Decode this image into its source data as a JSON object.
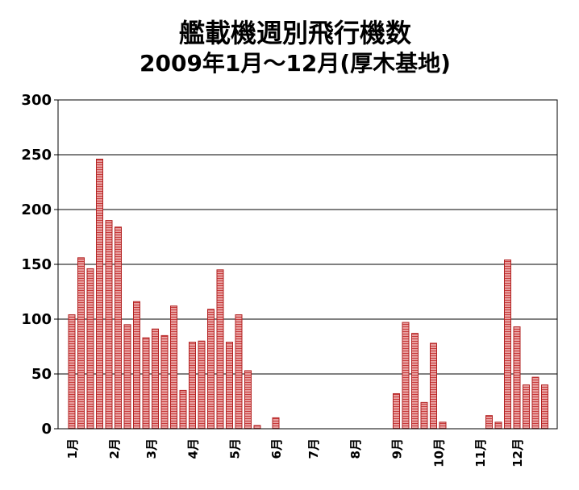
{
  "chart_data": {
    "type": "bar",
    "title_line1": "艦載機週別飛行機数",
    "title_line2": "2009年1月～12月(厚木基地)",
    "ylim": [
      0,
      300
    ],
    "yticks": [
      0,
      50,
      100,
      150,
      200,
      250,
      300
    ],
    "grid": true,
    "legend": "none",
    "bar_fill": "#E8A0A0",
    "bar_stripe": "#C83C3C",
    "bar_outline": "#B22222",
    "values": [
      104,
      156,
      146,
      246,
      190,
      184,
      95,
      116,
      83,
      91,
      85,
      112,
      35,
      79,
      80,
      109,
      145,
      79,
      104,
      53,
      3,
      0,
      10,
      0,
      0,
      0,
      0,
      0,
      0,
      0,
      0,
      0,
      0,
      0,
      0,
      32,
      97,
      87,
      24,
      78,
      6,
      0,
      0,
      0,
      0,
      12,
      6,
      154,
      93,
      40,
      47,
      40
    ],
    "month_labels": [
      {
        "label": "1月",
        "week": 0
      },
      {
        "label": "2月",
        "week": 4.5
      },
      {
        "label": "3月",
        "week": 8.5
      },
      {
        "label": "4月",
        "week": 13
      },
      {
        "label": "5月",
        "week": 17.5
      },
      {
        "label": "6月",
        "week": 22
      },
      {
        "label": "7月",
        "week": 26
      },
      {
        "label": "8月",
        "week": 30.5
      },
      {
        "label": "9月",
        "week": 35
      },
      {
        "label": "10月",
        "week": 39.5
      },
      {
        "label": "11月",
        "week": 44
      },
      {
        "label": "12月",
        "week": 48
      }
    ]
  }
}
